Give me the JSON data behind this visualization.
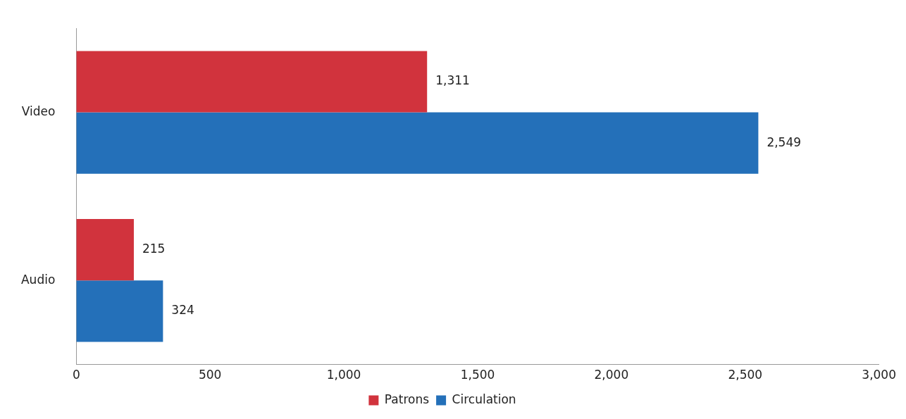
{
  "chart_data": {
    "type": "bar",
    "orientation": "horizontal",
    "categories": [
      "Video",
      "Audio"
    ],
    "series": [
      {
        "name": "Patrons",
        "color": "#d1333d",
        "values": [
          1311,
          215
        ],
        "value_labels": [
          "1,311",
          "215"
        ]
      },
      {
        "name": "Circulation",
        "color": "#2470b9",
        "values": [
          2549,
          324
        ],
        "value_labels": [
          "2,549",
          "324"
        ]
      }
    ],
    "xlim": [
      0,
      3000
    ],
    "xticks": [
      0,
      500,
      {
        "value": 1000,
        "label": "1,000"
      },
      {
        "value": 1500,
        "label": "1,500"
      },
      {
        "value": 2000,
        "label": "2,000"
      },
      {
        "value": 2500,
        "label": "2,500"
      },
      {
        "value": 3000,
        "label": "3,000"
      }
    ],
    "grid": false,
    "legend": "bottom"
  }
}
